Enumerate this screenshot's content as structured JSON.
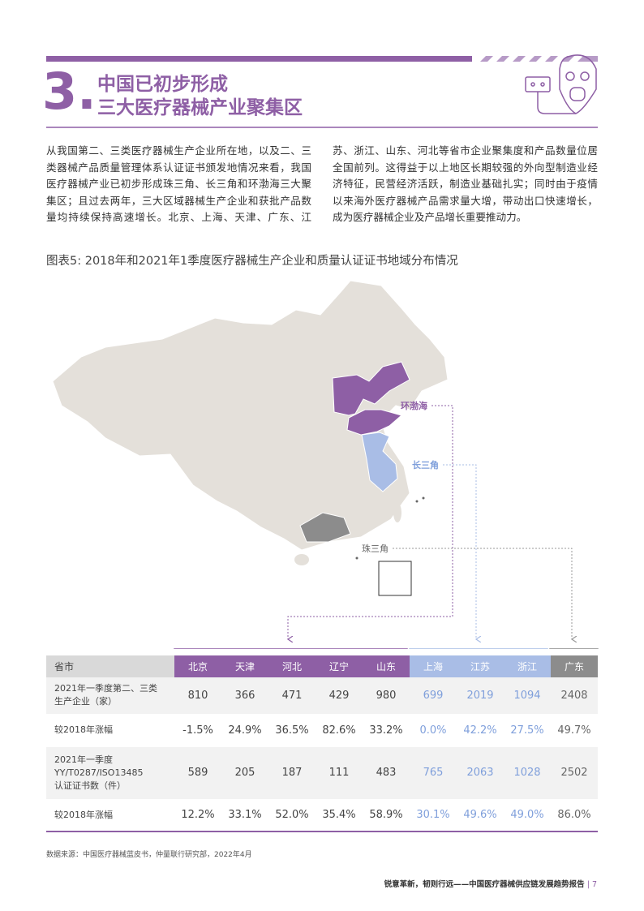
{
  "header": {
    "number": "3.",
    "title": [
      "中国已初步形成",
      "三大医疗器械产业聚集区"
    ]
  },
  "body": "从我国第二、三类医疗器械生产企业所在地，以及二、三类器械产品质量管理体系认证证书颁发地情况来看，我国医疗器械产业已初步形成珠三角、长三角和环渤海三大聚集区；且过去两年，三大区域器械生产企业和获批产品数量均持续保持高速增长。北京、上海、天津、广东、江苏、浙江、山东、河北等省市企业聚集度和产品数量位居全国前列。这得益于以上地区长期较强的外向型制造业经济特征，民营经济活跃，制造业基础扎实；同时由于疫情以来海外医疗器械产品需求量大增，带动出口快速增长，成为医疗器械企业及产品增长重要推动力。",
  "figure": {
    "caption": "图表5: 2018年和2021年1季度医疗器械生产企业和质量认证证书地域分布情况",
    "map_labels": [
      "环渤海",
      "长三角",
      "珠三角"
    ]
  },
  "table": {
    "header": [
      "省市",
      "北京",
      "天津",
      "河北",
      "辽宁",
      "山东",
      "上海",
      "江苏",
      "浙江",
      "广东"
    ],
    "rows": [
      {
        "label": [
          "2021年一季度第二、三类",
          "生产企业（家）"
        ],
        "cells": [
          "810",
          "366",
          "471",
          "429",
          "980",
          "699",
          "2019",
          "1094",
          "2408"
        ]
      },
      {
        "label": [
          "较2018年涨幅"
        ],
        "cells": [
          "-1.5%",
          "24.9%",
          "36.5%",
          "82.6%",
          "33.2%",
          "0.0%",
          "42.2%",
          "27.5%",
          "49.7%"
        ]
      },
      {
        "label": [
          "2021年一季度",
          "YY/T0287/ISO13485",
          "认证证书数（件）"
        ],
        "cells": [
          "589",
          "205",
          "187",
          "111",
          "483",
          "765",
          "2063",
          "1028",
          "2502"
        ]
      },
      {
        "label": [
          "较2018年涨幅"
        ],
        "cells": [
          "12.2%",
          "33.1%",
          "52.0%",
          "35.4%",
          "58.9%",
          "30.1%",
          "49.6%",
          "49.0%",
          "86.0%"
        ]
      }
    ]
  },
  "source": "数据来源：中国医疗器械蓝皮书，仲量联行研究部，2022年4月",
  "footer": {
    "text": "锐意革新，韧则行远——中国医疗器械供应链发展趋势报告",
    "page": "7"
  }
}
